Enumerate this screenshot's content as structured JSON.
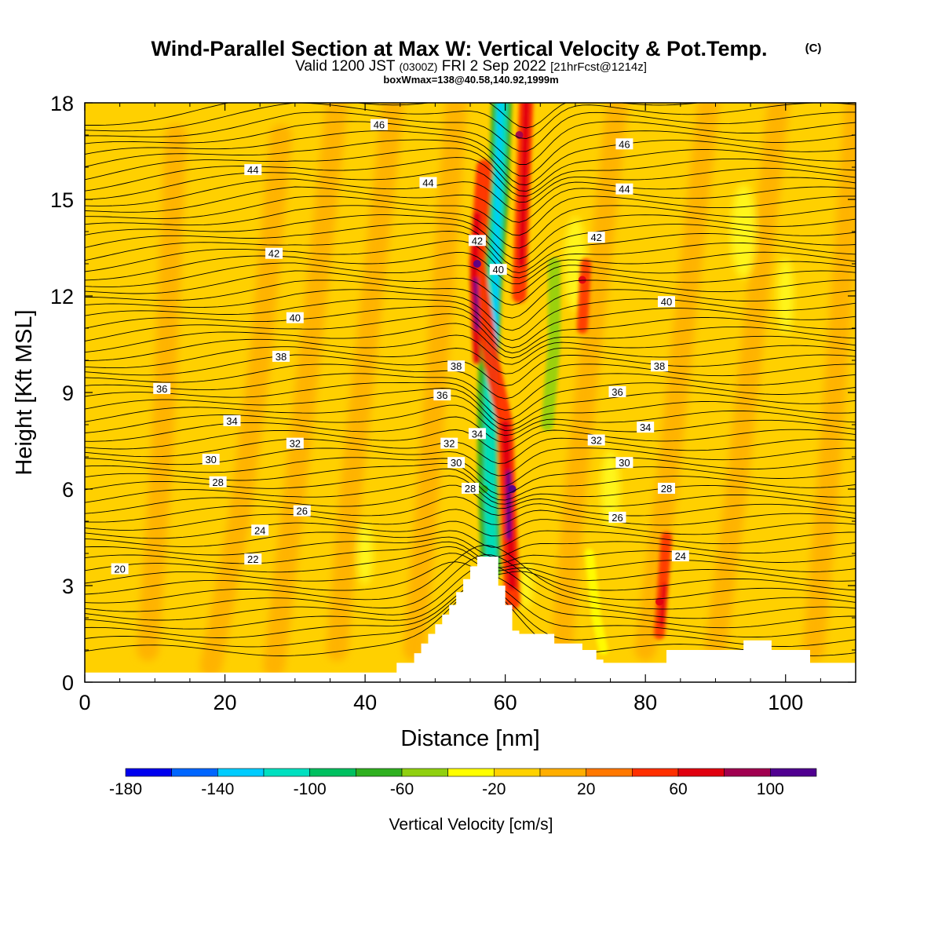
{
  "header": {
    "title": "Wind-Parallel Section at Max W: Vertical Velocity & Pot.Temp.",
    "title_mark": "(C)",
    "valid_prefix": "Valid 1200 JST",
    "valid_utc": "(0300Z)",
    "valid_date": "FRI 2 Sep 2022",
    "forecast": "[21hrFcst@1214z]",
    "boxinfo": "boxWmax=138@40.58,140.92,1999m"
  },
  "chart_data": {
    "type": "heatmap",
    "xlabel": "Distance [nm]",
    "ylabel": "Height [Kft MSL]",
    "xlim": [
      0,
      110
    ],
    "ylim": [
      0,
      18
    ],
    "x_ticks": [
      "0",
      "20",
      "40",
      "60",
      "80",
      "100"
    ],
    "x_tick_values": [
      0,
      20,
      40,
      60,
      80,
      100
    ],
    "y_ticks": [
      "0",
      "3",
      "6",
      "9",
      "12",
      "15",
      "18"
    ],
    "y_tick_values": [
      0,
      3,
      6,
      9,
      12,
      15,
      18
    ],
    "colorbar": {
      "label": "Vertical Velocity [cm/s]",
      "levels": [
        -180,
        -160,
        -140,
        -120,
        -100,
        -80,
        -60,
        -40,
        -20,
        0,
        20,
        40,
        60,
        80,
        100,
        120
      ],
      "tick_labels": [
        "-180",
        "-140",
        "-100",
        "-60",
        "-20",
        "20",
        "60",
        "100"
      ],
      "tick_values": [
        -180,
        -140,
        -100,
        -60,
        -20,
        20,
        60,
        100
      ],
      "colors": [
        "#0000ee",
        "#0066ff",
        "#00ccff",
        "#00e0c0",
        "#00c060",
        "#30b020",
        "#90d010",
        "#ffff00",
        "#ffd200",
        "#ffae00",
        "#ff7800",
        "#ff3000",
        "#e00010",
        "#a00050",
        "#500090"
      ]
    },
    "background_color": "#ffd000",
    "w_features": [
      {
        "kind": "updraft",
        "x": 62,
        "z": 17,
        "value": 80
      },
      {
        "kind": "updraft",
        "x": 56,
        "z": 13,
        "value": 100
      },
      {
        "kind": "updraft",
        "x": 61,
        "z": 6,
        "value": 110
      },
      {
        "kind": "downdraft",
        "x": 59,
        "z": 16,
        "value": -110
      },
      {
        "kind": "downdraft",
        "x": 57,
        "z": 6,
        "value": -80
      },
      {
        "kind": "downdraft",
        "x": 67,
        "z": 11,
        "value": -50
      },
      {
        "kind": "updraft",
        "x": 71,
        "z": 12.5,
        "value": 60
      },
      {
        "kind": "updraft",
        "x": 82,
        "z": 2.5,
        "value": 60
      }
    ],
    "terrain": [
      [
        0,
        0.3
      ],
      [
        44,
        0.3
      ],
      [
        44.5,
        0.6
      ],
      [
        47,
        0.9
      ],
      [
        48,
        1.2
      ],
      [
        49,
        1.5
      ],
      [
        50,
        1.8
      ],
      [
        51,
        2.1
      ],
      [
        52,
        2.4
      ],
      [
        53,
        2.8
      ],
      [
        54,
        3.2
      ],
      [
        55,
        3.6
      ],
      [
        56,
        3.9
      ],
      [
        58,
        3.9
      ],
      [
        59,
        3.0
      ],
      [
        60,
        2.4
      ],
      [
        61,
        1.6
      ],
      [
        62,
        1.5
      ],
      [
        63,
        1.5
      ],
      [
        67,
        1.2
      ],
      [
        71,
        1.0
      ],
      [
        73,
        0.7
      ],
      [
        74,
        0.6
      ],
      [
        79,
        0.6
      ],
      [
        83,
        1.0
      ],
      [
        93,
        1.0
      ],
      [
        94,
        1.3
      ],
      [
        97,
        1.3
      ],
      [
        98,
        1.0
      ],
      [
        103,
        1.0
      ],
      [
        103.5,
        0.6
      ],
      [
        110,
        0.6
      ]
    ],
    "contours": {
      "variable": "Potential temperature",
      "labels": [
        {
          "value": "46",
          "x": 42,
          "z": 17.3
        },
        {
          "value": "46",
          "x": 77,
          "z": 16.7
        },
        {
          "value": "44",
          "x": 24,
          "z": 15.9
        },
        {
          "value": "44",
          "x": 49,
          "z": 15.5
        },
        {
          "value": "44",
          "x": 77,
          "z": 15.3
        },
        {
          "value": "42",
          "x": 27,
          "z": 13.3
        },
        {
          "value": "42",
          "x": 56,
          "z": 13.7
        },
        {
          "value": "42",
          "x": 73,
          "z": 13.8
        },
        {
          "value": "40",
          "x": 59,
          "z": 12.8
        },
        {
          "value": "40",
          "x": 30,
          "z": 11.3
        },
        {
          "value": "40",
          "x": 83,
          "z": 11.8
        },
        {
          "value": "38",
          "x": 28,
          "z": 10.1
        },
        {
          "value": "38",
          "x": 53,
          "z": 9.8
        },
        {
          "value": "38",
          "x": 82,
          "z": 9.8
        },
        {
          "value": "36",
          "x": 11,
          "z": 9.1
        },
        {
          "value": "36",
          "x": 51,
          "z": 8.9
        },
        {
          "value": "36",
          "x": 76,
          "z": 9.0
        },
        {
          "value": "34",
          "x": 21,
          "z": 8.1
        },
        {
          "value": "34",
          "x": 56,
          "z": 7.7
        },
        {
          "value": "34",
          "x": 80,
          "z": 7.9
        },
        {
          "value": "32",
          "x": 30,
          "z": 7.4
        },
        {
          "value": "32",
          "x": 52,
          "z": 7.4
        },
        {
          "value": "32",
          "x": 73,
          "z": 7.5
        },
        {
          "value": "30",
          "x": 18,
          "z": 6.9
        },
        {
          "value": "30",
          "x": 53,
          "z": 6.8
        },
        {
          "value": "30",
          "x": 77,
          "z": 6.8
        },
        {
          "value": "28",
          "x": 19,
          "z": 6.2
        },
        {
          "value": "28",
          "x": 55,
          "z": 6.0
        },
        {
          "value": "28",
          "x": 83,
          "z": 6.0
        },
        {
          "value": "26",
          "x": 31,
          "z": 5.3
        },
        {
          "value": "26",
          "x": 76,
          "z": 5.1
        },
        {
          "value": "24",
          "x": 25,
          "z": 4.7
        },
        {
          "value": "24",
          "x": 85,
          "z": 3.9
        },
        {
          "value": "22",
          "x": 24,
          "z": 3.8
        },
        {
          "value": "20",
          "x": 5,
          "z": 3.5
        }
      ]
    }
  }
}
